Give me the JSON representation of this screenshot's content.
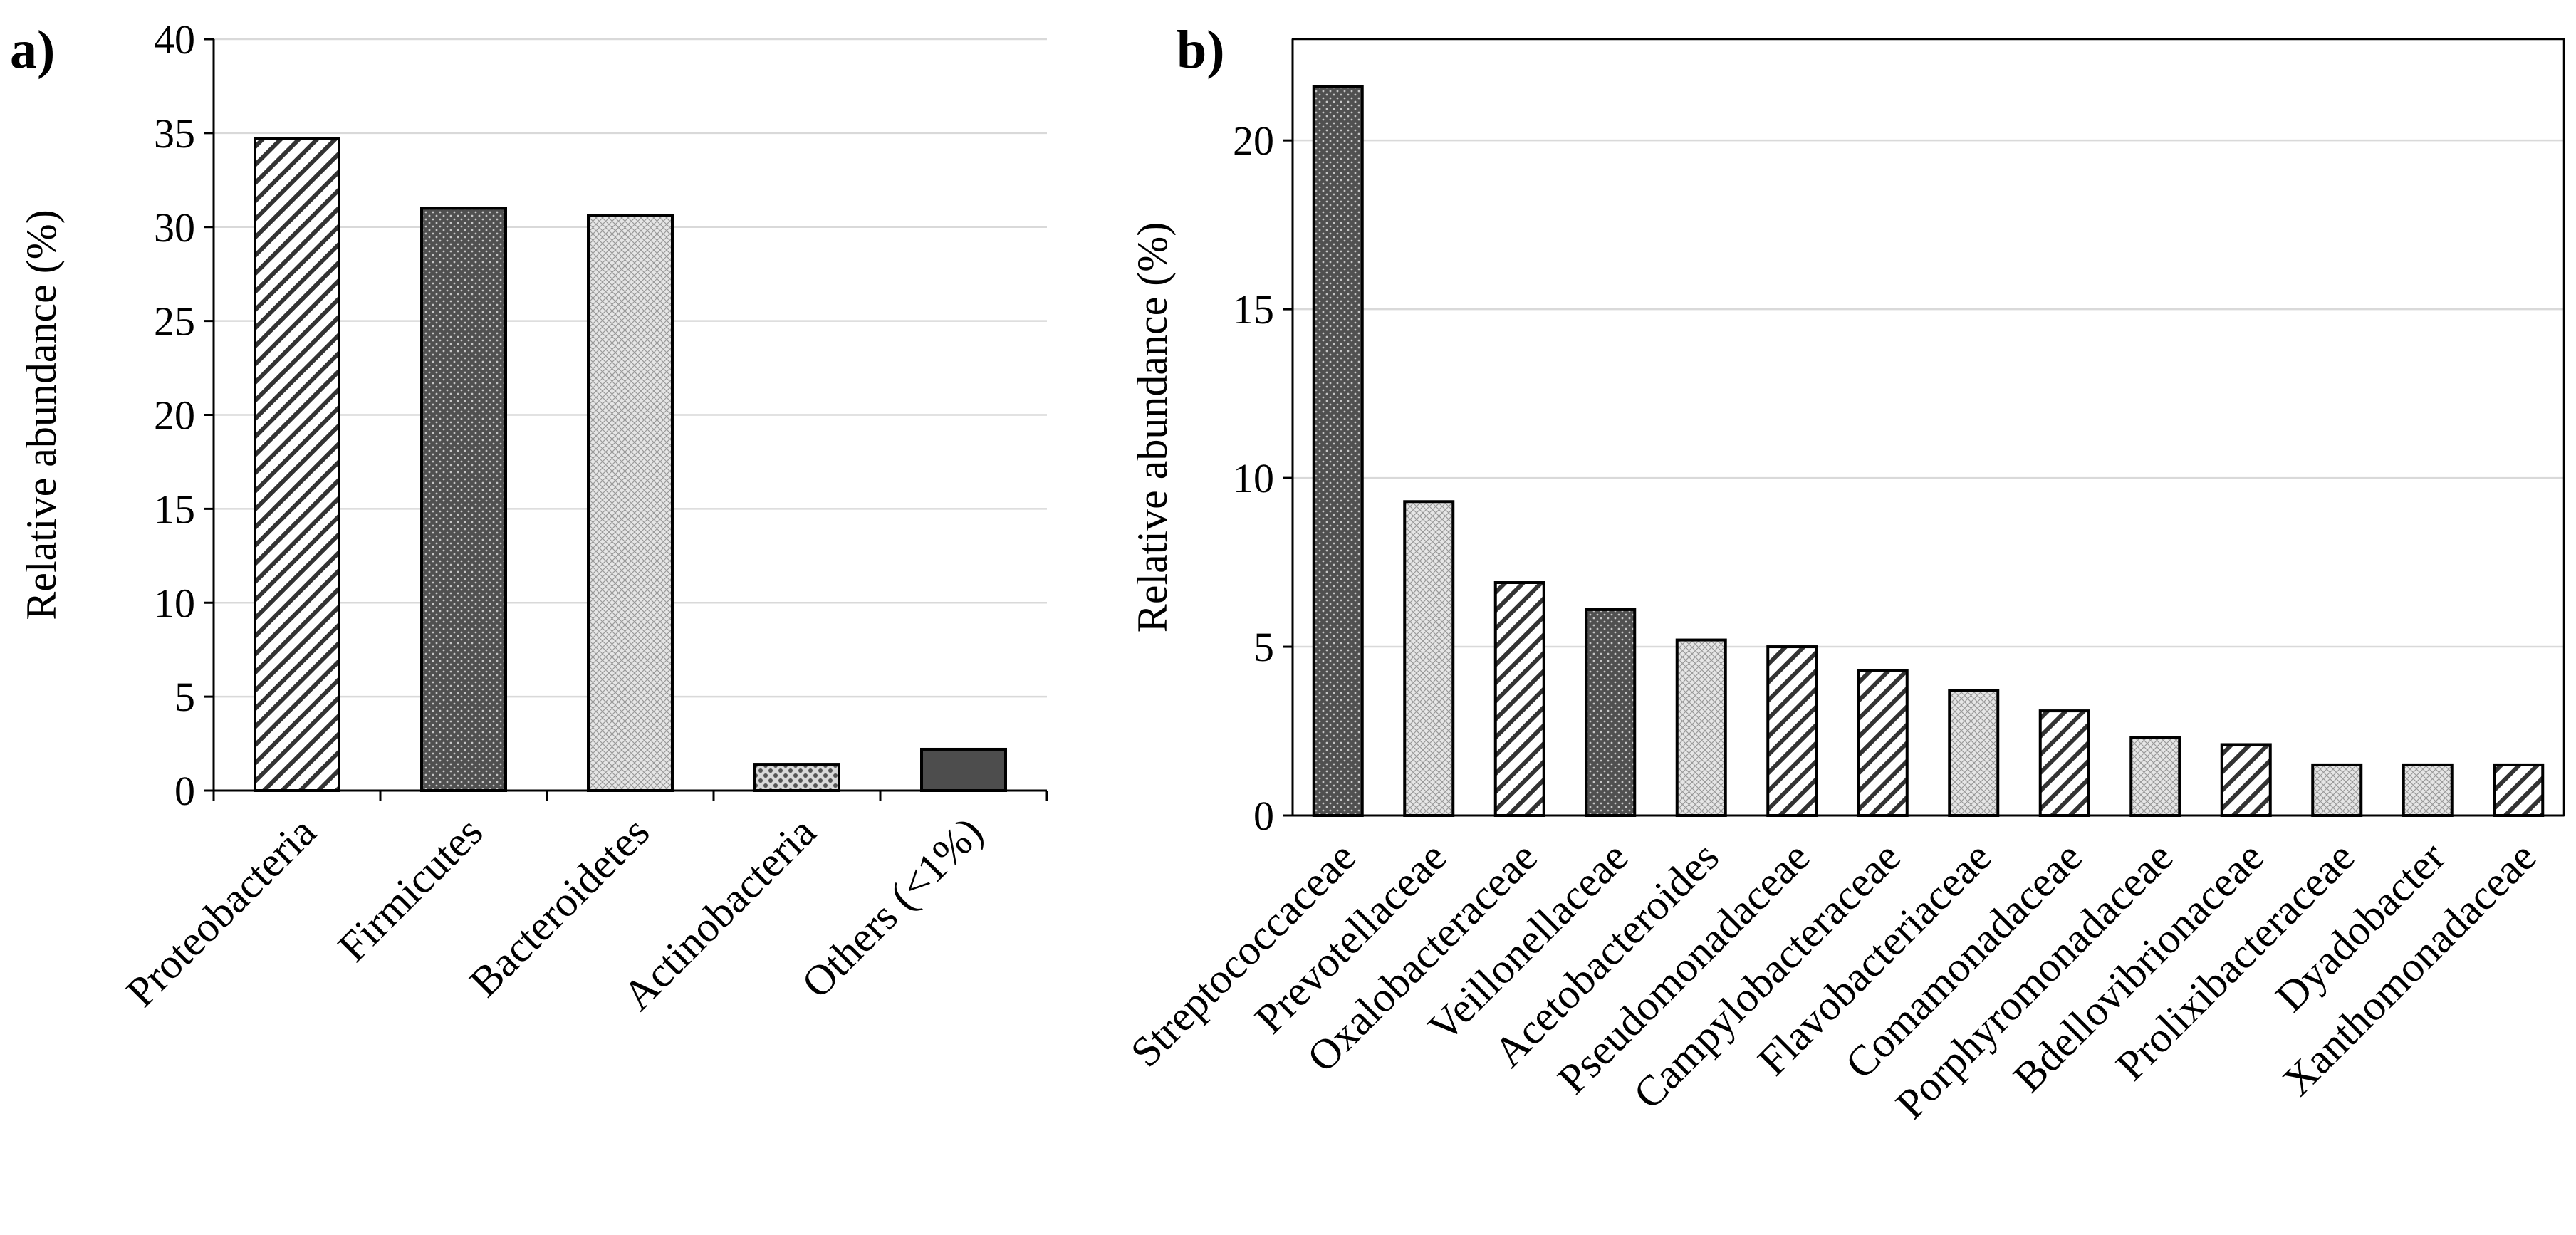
{
  "figure": {
    "panels": [
      "a)",
      "b)"
    ]
  },
  "chart_data": [
    {
      "type": "bar",
      "panel": "a)",
      "title": "",
      "xlabel": "",
      "ylabel": "Relative abundance (%)",
      "ylim": [
        0,
        40
      ],
      "yticks": [
        0,
        5,
        10,
        15,
        20,
        25,
        30,
        35,
        40
      ],
      "grid": true,
      "categories": [
        "Proteobacteria",
        "Firmicutes",
        "Bacteroidetes",
        "Actinobacteria",
        "Others (<1%)"
      ],
      "values": [
        34.7,
        31.0,
        30.6,
        1.4,
        2.2
      ],
      "fills": [
        "hatch",
        "dark-dots",
        "light-cross",
        "light-dots",
        "dark"
      ]
    },
    {
      "type": "bar",
      "panel": "b)",
      "title": "",
      "xlabel": "",
      "ylabel": "Relative abundance (%)",
      "ylim": [
        0,
        23
      ],
      "yticks": [
        0,
        5,
        10,
        15,
        20
      ],
      "grid": true,
      "categories": [
        "Streptococcaceae",
        "Prevotellaceae",
        "Oxalobacteraceae",
        "Veillonellaceae",
        "Acetobacteroides",
        "Pseudomonadaceae",
        "Campylobacteraceae",
        "Flavobacteriaceae",
        "Comamonadaceae",
        "Porphyromonadaceae",
        "Bdellovibrionaceae",
        "Prolixibacteraceae",
        "Dyadobacter",
        "Xanthomonadaceae"
      ],
      "values": [
        21.6,
        9.3,
        6.9,
        6.1,
        5.2,
        5.0,
        4.3,
        3.7,
        3.1,
        2.3,
        2.1,
        1.5,
        1.5,
        1.5
      ],
      "fills": [
        "dark-dots",
        "light-cross",
        "hatch",
        "dark-dots",
        "light-cross",
        "hatch",
        "hatch",
        "light-cross",
        "hatch",
        "light-cross",
        "hatch",
        "light-cross",
        "light-cross",
        "hatch"
      ]
    }
  ]
}
